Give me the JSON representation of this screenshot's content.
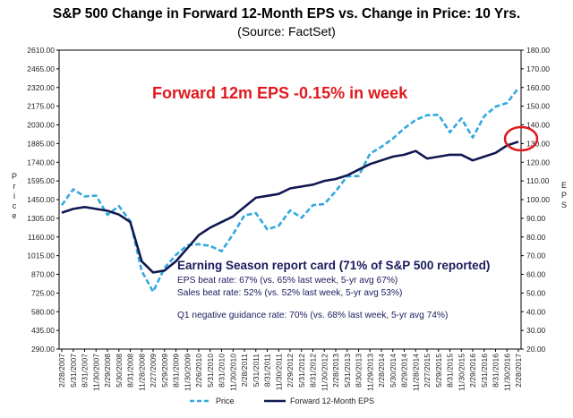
{
  "title": "S&P 500 Change in Forward 12-Month EPS vs. Change in Price: 10 Yrs.",
  "subtitle": "(Source: FactSet)",
  "headline": "Forward 12m EPS -0.15% in week",
  "card": {
    "title": "Earning Season report card (71% of S&P 500 reported)",
    "lines": [
      "EPS beat rate: 67% (vs. 65% last week, 5-yr avg 67%)",
      "Sales beat rate: 52% (vs. 52% last week, 5-yr avg 53%)",
      "Q1 negative guidance rate: 70% (vs. 68% last week, 5-yr avg 74%)"
    ]
  },
  "colors": {
    "price": "#33a8e0",
    "eps": "#101850",
    "headline": "#e0191e",
    "circle": "#e0191e",
    "card_text": "#1a1a5e"
  },
  "chart_data": {
    "type": "line",
    "ylabel": "Price",
    "y2label": "EPS",
    "ylim": [
      290,
      2610
    ],
    "y2lim": [
      20,
      180
    ],
    "yticks": [
      "2610.00",
      "2465.00",
      "2320.00",
      "2175.00",
      "2030.00",
      "1885.00",
      "1740.00",
      "1595.00",
      "1450.00",
      "1305.00",
      "1160.00",
      "1015.00",
      "870.00",
      "725.00",
      "580.00",
      "435.00",
      "290.00"
    ],
    "y2ticks": [
      "180.00",
      "170.00",
      "160.00",
      "150.00",
      "140.00",
      "130.00",
      "120.00",
      "110.00",
      "100.00",
      "90.00",
      "80.00",
      "70.00",
      "60.00",
      "50.00",
      "40.00",
      "30.00",
      "20.00"
    ],
    "xticks": [
      "2/28/2007",
      "5/31/2007",
      "8/31/2007",
      "11/30/2007",
      "2/29/2008",
      "5/30/2008",
      "8/31/2008",
      "11/28/2008",
      "2/27/2009",
      "5/29/2009",
      "8/31/2009",
      "11/30/2009",
      "2/26/2010",
      "5/31/2010",
      "8/31/2010",
      "11/30/2010",
      "2/28/2011",
      "5/31/2011",
      "8/31/2011",
      "11/30/2011",
      "2/29/2012",
      "5/31/2012",
      "8/31/2012",
      "11/30/2012",
      "2/28/2013",
      "5/31/2013",
      "8/30/2013",
      "11/29/2013",
      "2/28/2014",
      "5/30/2014",
      "8/29/2014",
      "11/28/2014",
      "2/27/2015",
      "5/29/2015",
      "8/31/2015",
      "11/30/2015",
      "2/29/2016",
      "5/31/2016",
      "8/31/2016",
      "11/30/2016",
      "2/28/2017"
    ],
    "grid": false,
    "legend": "bottom",
    "series": [
      {
        "name": "Price",
        "axis": "left",
        "style": "dashed",
        "x": [
          "2/28/2007",
          "5/31/2007",
          "8/31/2007",
          "11/30/2007",
          "2/29/2008",
          "5/30/2008",
          "8/31/2008",
          "11/28/2008",
          "2/27/2009",
          "5/29/2009",
          "8/31/2009",
          "11/30/2009",
          "2/26/2010",
          "5/31/2010",
          "8/31/2010",
          "11/30/2010",
          "2/28/2011",
          "5/31/2011",
          "8/31/2011",
          "11/30/2011",
          "2/29/2012",
          "5/31/2012",
          "8/31/2012",
          "11/30/2012",
          "2/28/2013",
          "5/31/2013",
          "8/30/2013",
          "11/29/2013",
          "2/28/2014",
          "5/30/2014",
          "8/29/2014",
          "11/28/2014",
          "2/27/2015",
          "5/29/2015",
          "8/31/2015",
          "11/30/2015",
          "2/29/2016",
          "5/31/2016",
          "8/31/2016",
          "11/30/2016",
          "2/28/2017"
        ],
        "values": [
          1407,
          1530,
          1474,
          1481,
          1331,
          1400,
          1282,
          896,
          735,
          919,
          1021,
          1096,
          1104,
          1090,
          1049,
          1181,
          1328,
          1345,
          1219,
          1247,
          1366,
          1310,
          1407,
          1416,
          1515,
          1631,
          1633,
          1806,
          1860,
          1924,
          2003,
          2068,
          2105,
          2108,
          1972,
          2080,
          1932,
          2097,
          2171,
          2200,
          2315
        ]
      },
      {
        "name": "Forward 12-Month EPS",
        "axis": "right",
        "style": "solid",
        "x": [
          "2/28/2007",
          "5/31/2007",
          "8/31/2007",
          "11/30/2007",
          "2/29/2008",
          "5/30/2008",
          "8/31/2008",
          "11/28/2008",
          "2/27/2009",
          "5/29/2009",
          "8/31/2009",
          "11/30/2009",
          "2/26/2010",
          "5/31/2010",
          "8/31/2010",
          "11/30/2010",
          "2/28/2011",
          "5/31/2011",
          "8/31/2011",
          "11/30/2011",
          "2/29/2012",
          "5/31/2012",
          "8/31/2012",
          "11/30/2012",
          "2/28/2013",
          "5/31/2013",
          "8/30/2013",
          "11/29/2013",
          "2/28/2014",
          "5/30/2014",
          "8/29/2014",
          "11/28/2014",
          "2/27/2015",
          "5/29/2015",
          "8/31/2015",
          "11/30/2015",
          "2/29/2016",
          "5/31/2016",
          "8/31/2016",
          "11/30/2016",
          "2/28/2017"
        ],
        "values": [
          93,
          95,
          96,
          95,
          94,
          92,
          88,
          67,
          61,
          62,
          67,
          74,
          81,
          85,
          88,
          91,
          96,
          101,
          102,
          103,
          106,
          107,
          108,
          110,
          111,
          113,
          116,
          119,
          121,
          123,
          124,
          126,
          122,
          123,
          124,
          124,
          121,
          123,
          125,
          129,
          131
        ]
      }
    ]
  }
}
